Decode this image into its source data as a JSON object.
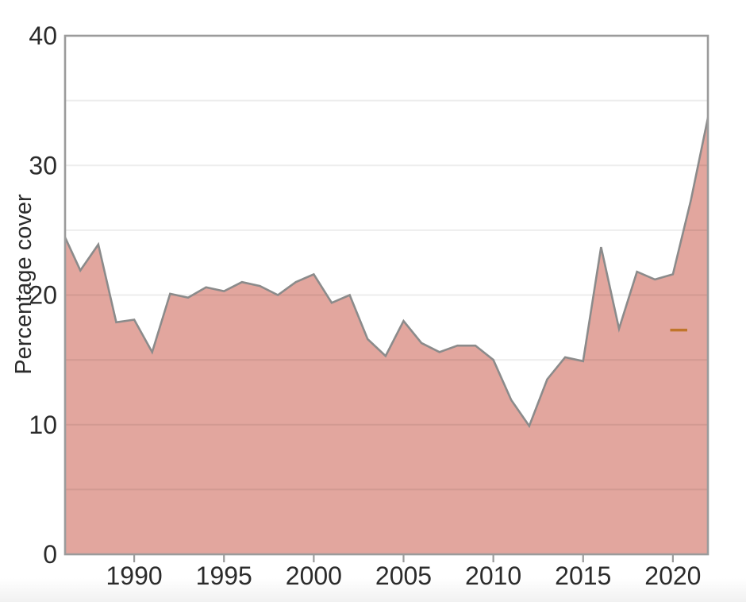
{
  "page": {
    "background": "#ffffff"
  },
  "chart_data": {
    "type": "area",
    "title": "",
    "xlabel": "",
    "ylabel": "Percentage cover",
    "series_name": "percentage-cover",
    "x": [
      1986,
      1987,
      1988,
      1989,
      1990,
      1991,
      1992,
      1993,
      1994,
      1995,
      1996,
      1997,
      1998,
      1999,
      2000,
      2001,
      2002,
      2003,
      2004,
      2005,
      2006,
      2007,
      2008,
      2009,
      2010,
      2011,
      2012,
      2013,
      2014,
      2015,
      2016,
      2017,
      2018,
      2019,
      2020,
      2021,
      2022
    ],
    "values": [
      24.9,
      21.9,
      23.9,
      17.9,
      18.1,
      15.6,
      20.1,
      19.8,
      20.6,
      20.3,
      21.0,
      20.7,
      20.0,
      21.0,
      21.6,
      19.4,
      20.0,
      16.6,
      15.3,
      18.0,
      16.3,
      15.6,
      16.1,
      16.1,
      15.0,
      11.9,
      9.9,
      13.5,
      15.2,
      14.9,
      23.7,
      17.4,
      21.8,
      21.2,
      21.6,
      27.3,
      34.0
    ],
    "xlim": [
      1986.15,
      2021.95
    ],
    "ylim": [
      0,
      40
    ],
    "x_ticks": [
      1990,
      1995,
      2000,
      2005,
      2010,
      2015,
      2020
    ],
    "y_ticks": [
      0,
      10,
      20,
      30,
      40
    ],
    "y_gridlines": [
      5,
      10,
      15,
      20,
      25,
      30,
      35
    ],
    "grid": "horizontal-only",
    "legend_position": "none",
    "marker": {
      "type": "horizontal-dash",
      "value": 17.3,
      "x_start": 2019.85,
      "x_end": 2020.8
    },
    "colors": {
      "area_fill": "#e2a69e",
      "line": "#8b8b8b",
      "frame": "#9b9b9b",
      "grid": "rgba(0,0,0,0.07)",
      "marker": "#c0752b",
      "text": "#2b2b2b",
      "tick": "#9b9b9b"
    }
  }
}
